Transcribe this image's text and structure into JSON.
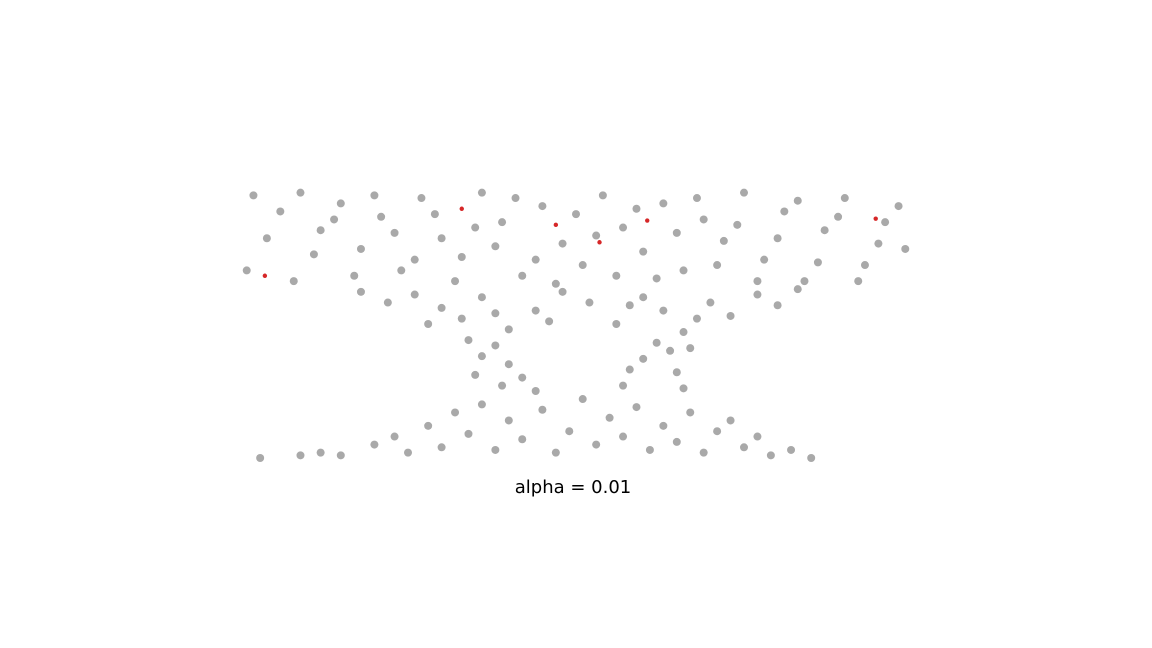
{
  "chart_data": {
    "type": "scatter",
    "title": "alpha = 0.01",
    "xlim": [
      0,
      100
    ],
    "ylim": [
      0,
      100
    ],
    "series": [
      {
        "color": "#a9a9a9",
        "x": [
          2,
          6,
          9,
          12,
          15,
          18,
          21,
          24,
          27,
          30,
          33,
          36,
          39,
          42,
          45,
          48,
          51,
          54,
          57,
          60,
          63,
          66,
          69,
          72,
          75,
          78,
          81,
          84,
          87,
          90,
          93,
          96,
          99,
          1,
          4,
          8,
          11,
          14,
          17,
          20,
          23,
          26,
          29,
          32,
          35,
          38,
          41,
          44,
          47,
          50,
          53,
          56,
          59,
          62,
          65,
          68,
          71,
          74,
          77,
          80,
          83,
          86,
          89,
          92,
          95,
          98,
          18,
          22,
          26,
          30,
          33,
          36,
          40,
          44,
          48,
          52,
          56,
          60,
          63,
          66,
          70,
          73,
          77,
          80,
          83,
          28,
          38,
          58,
          68,
          46,
          34,
          36,
          35,
          38,
          40,
          39,
          42,
          44,
          57,
          58,
          60,
          62,
          64,
          65,
          66,
          67,
          20,
          23,
          25,
          28,
          30,
          32,
          34,
          36,
          38,
          40,
          42,
          45,
          47,
          49,
          51,
          53,
          55,
          57,
          59,
          61,
          63,
          65,
          67,
          69,
          71,
          73,
          75,
          77,
          79,
          82,
          85,
          3,
          9,
          12,
          15
        ],
        "values": [
          98,
          92,
          99,
          85,
          95,
          78,
          90,
          70,
          97,
          82,
          75,
          99,
          88,
          68,
          94,
          80,
          72,
          98,
          86,
          77,
          95,
          70,
          89,
          81,
          99,
          74,
          92,
          66,
          85,
          97,
          72,
          88,
          78,
          70,
          82,
          66,
          76,
          89,
          68,
          98,
          84,
          74,
          91,
          66,
          86,
          79,
          97,
          74,
          65,
          91,
          83,
          68,
          93,
          67,
          84,
          97,
          72,
          87,
          66,
          82,
          96,
          73,
          90,
          66,
          80,
          94,
          62,
          58,
          61,
          56,
          52,
          60,
          48,
          55,
          62,
          58,
          50,
          60,
          55,
          47,
          58,
          53,
          61,
          57,
          63,
          50,
          54,
          57,
          52,
          51,
          44,
          38,
          31,
          42,
          35,
          27,
          30,
          25,
          27,
          33,
          37,
          43,
          40,
          32,
          26,
          41,
          5,
          8,
          2,
          12,
          4,
          17,
          9,
          20,
          3,
          14,
          7,
          18,
          2,
          10,
          22,
          5,
          15,
          8,
          19,
          3,
          12,
          6,
          17,
          2,
          10,
          14,
          4,
          8,
          1,
          3,
          0,
          0,
          1,
          2,
          1
        ]
      },
      {
        "color": "#d62728",
        "x": [
          3.7,
          33,
          47,
          53.5,
          60.6,
          94.6
        ],
        "values": [
          68,
          93,
          87,
          80.5,
          88.6,
          89.3
        ]
      }
    ]
  }
}
